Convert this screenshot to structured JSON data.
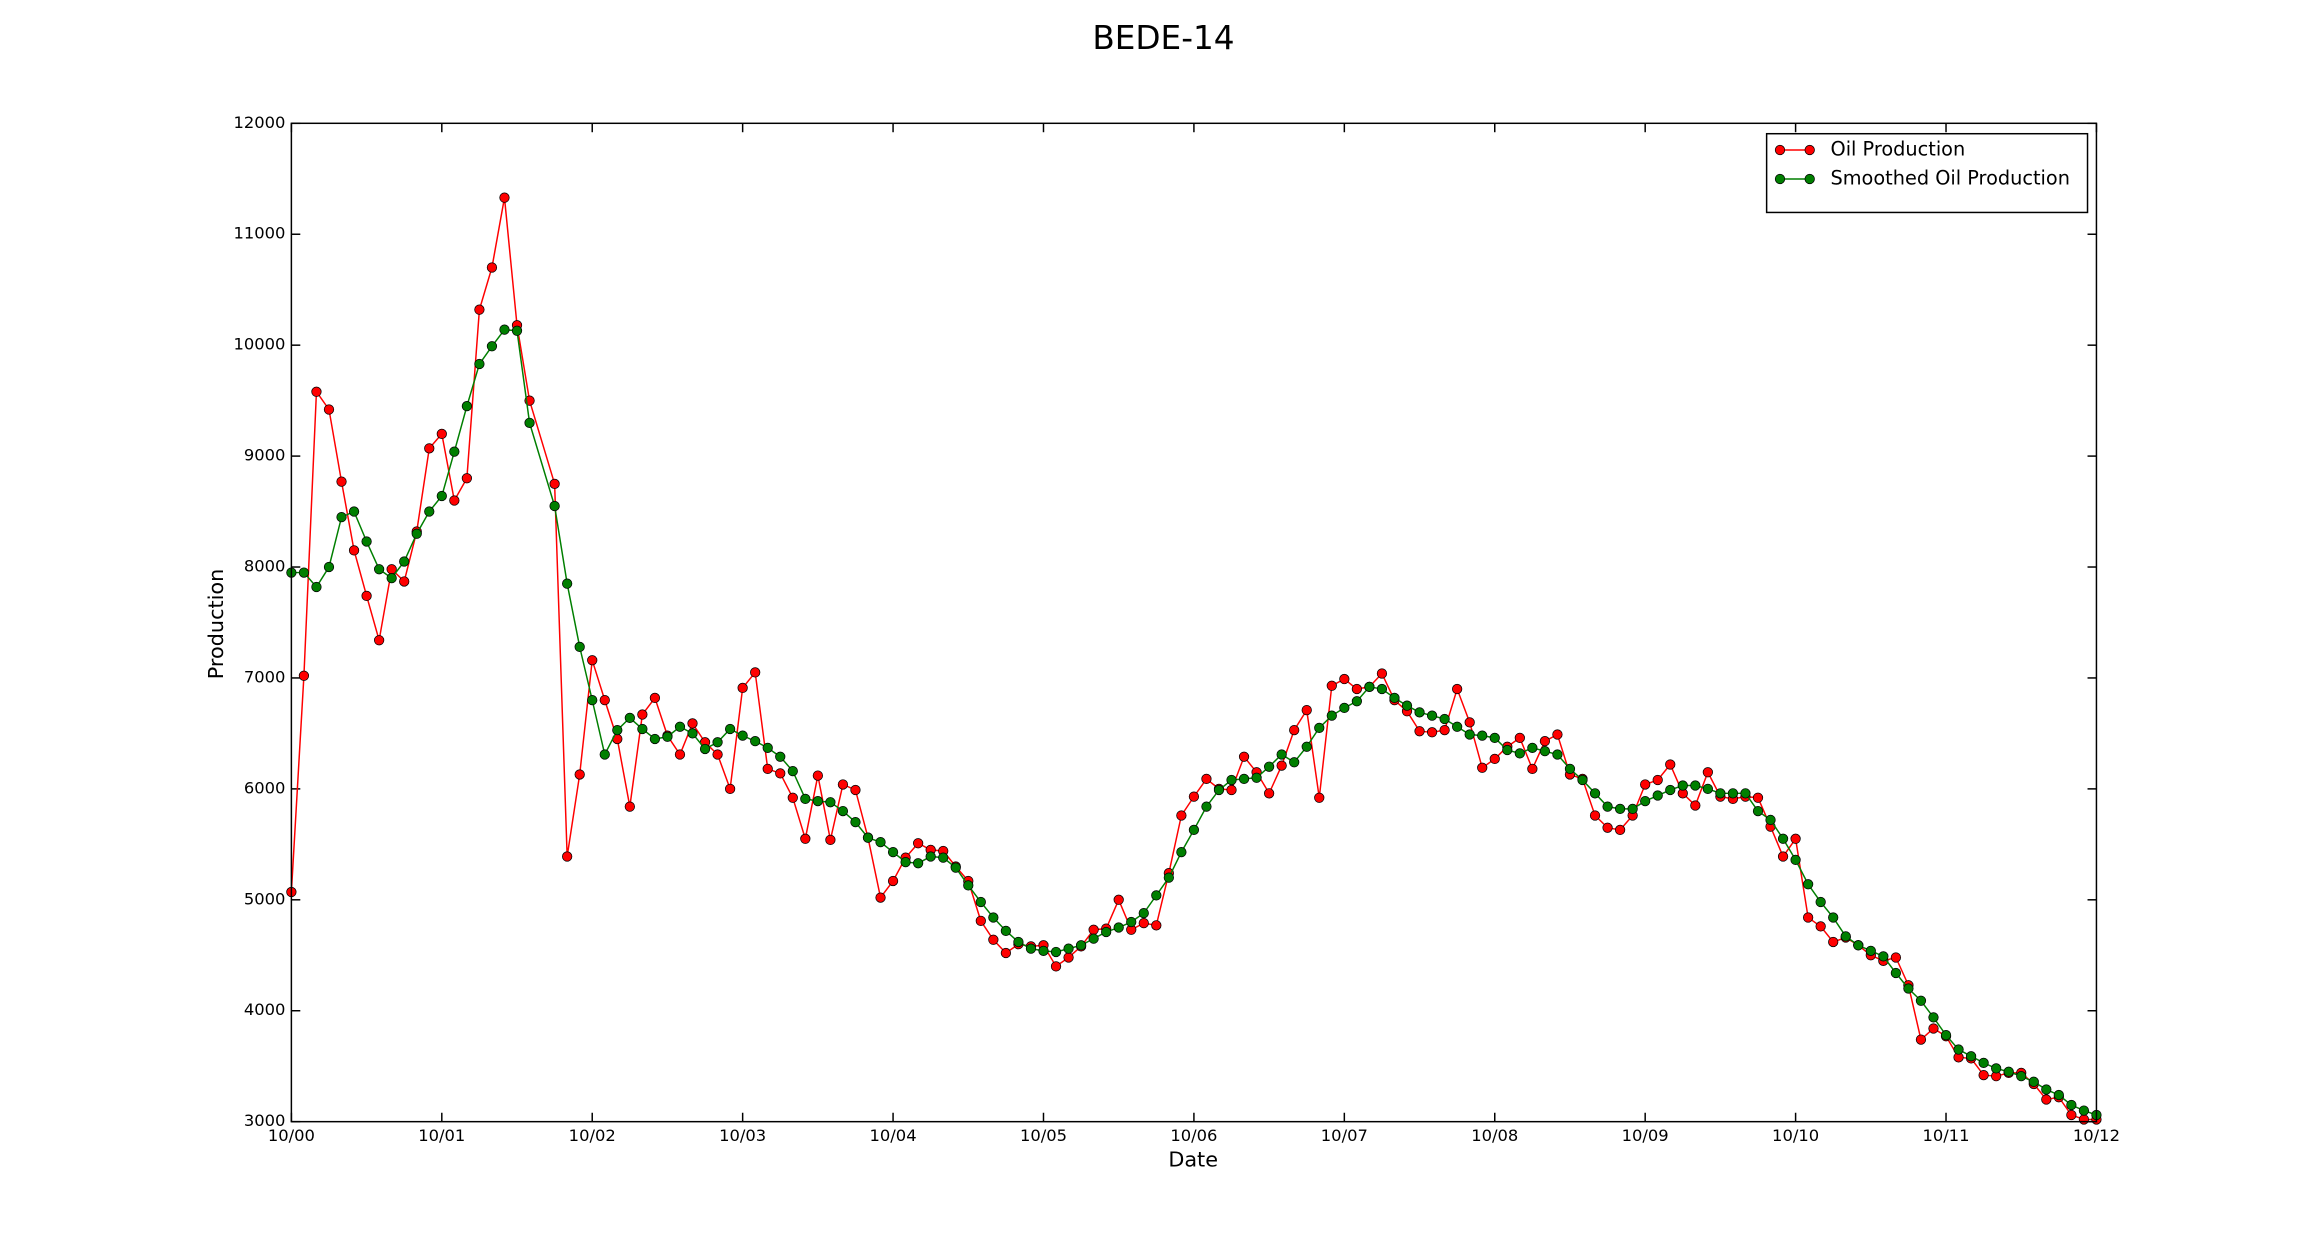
{
  "chart_data": {
    "type": "line",
    "title": "BEDE-14",
    "x_label": "Date",
    "y_label": "Production",
    "x": [
      0,
      1,
      2,
      3,
      4,
      5,
      6,
      7,
      8,
      9,
      10,
      11,
      12,
      13,
      14,
      15,
      16,
      17,
      18,
      19,
      21,
      22,
      23,
      24,
      25,
      26,
      27,
      28,
      29,
      30,
      31,
      32,
      33,
      34,
      35,
      36,
      37,
      38,
      39,
      40,
      41,
      42,
      43,
      44,
      45,
      46,
      47,
      48,
      49,
      50,
      51,
      52,
      53,
      54,
      55,
      56,
      57,
      58,
      59,
      60,
      61,
      62,
      63,
      64,
      65,
      66,
      67,
      68,
      69,
      70,
      71,
      72,
      73,
      74,
      75,
      76,
      77,
      78,
      79,
      80,
      81,
      82,
      83,
      84,
      85,
      86,
      87,
      88,
      89,
      90,
      91,
      92,
      93,
      94,
      95,
      96,
      97,
      98,
      99,
      100,
      101,
      102,
      103,
      104,
      105,
      106,
      107,
      108,
      109,
      110,
      111,
      112,
      113,
      114,
      115,
      116,
      117,
      118,
      119,
      120,
      121,
      122,
      123,
      124,
      125,
      126,
      127,
      128,
      129,
      130,
      131,
      132,
      133,
      134,
      135,
      136,
      137,
      138,
      139,
      140,
      141,
      142,
      143,
      144
    ],
    "series": [
      {
        "name": "Oil Production",
        "color": "#ff0000",
        "values": [
          5070,
          7020,
          9580,
          9420,
          8770,
          8150,
          7740,
          7340,
          7980,
          7870,
          8320,
          9070,
          9200,
          8600,
          8800,
          10320,
          10700,
          11330,
          10180,
          9500,
          8750,
          5390,
          6130,
          7160,
          6800,
          6450,
          5840,
          6670,
          6820,
          6480,
          6310,
          6590,
          6420,
          6310,
          6000,
          6910,
          7050,
          6180,
          6140,
          5920,
          5550,
          6120,
          5540,
          6040,
          5990,
          5560,
          5020,
          5170,
          5380,
          5510,
          5450,
          5440,
          5300,
          5170,
          4810,
          4640,
          4520,
          4600,
          4580,
          4590,
          4400,
          4480,
          4580,
          4730,
          4740,
          5000,
          4730,
          4790,
          4770,
          5240,
          5760,
          5930,
          6090,
          6000,
          5990,
          6290,
          6150,
          5960,
          6210,
          6530,
          6710,
          5920,
          6930,
          6990,
          6900,
          6920,
          7040,
          6800,
          6700,
          6520,
          6510,
          6530,
          6900,
          6600,
          6190,
          6270,
          6380,
          6460,
          6180,
          6430,
          6490,
          6130,
          6090,
          5760,
          5650,
          5630,
          5760,
          6040,
          6080,
          6220,
          5960,
          5850,
          6150,
          5930,
          5910,
          5930,
          5920,
          5660,
          5390,
          5550,
          4840,
          4760,
          4620,
          4660,
          4590,
          4500,
          4450,
          4480,
          4230,
          3740,
          3840,
          3770,
          3580,
          3570,
          3420,
          3410,
          3440,
          3440,
          3340,
          3200,
          3220,
          3060,
          3020,
          3020
        ]
      },
      {
        "name": "Smoothed Oil Production",
        "color": "#007f00",
        "values": [
          7950,
          7950,
          7820,
          8000,
          8450,
          8500,
          8230,
          7980,
          7900,
          8050,
          8300,
          8500,
          8640,
          9040,
          9450,
          9830,
          9990,
          10140,
          10130,
          9300,
          8550,
          7850,
          7280,
          6800,
          6310,
          6530,
          6640,
          6540,
          6450,
          6470,
          6560,
          6500,
          6360,
          6420,
          6540,
          6480,
          6430,
          6370,
          6290,
          6160,
          5910,
          5890,
          5880,
          5800,
          5700,
          5560,
          5520,
          5430,
          5340,
          5330,
          5390,
          5380,
          5290,
          5130,
          4980,
          4840,
          4720,
          4620,
          4560,
          4540,
          4530,
          4560,
          4590,
          4650,
          4710,
          4750,
          4800,
          4880,
          5040,
          5200,
          5430,
          5630,
          5840,
          5990,
          6080,
          6090,
          6100,
          6200,
          6310,
          6240,
          6380,
          6550,
          6660,
          6730,
          6790,
          6920,
          6900,
          6820,
          6750,
          6690,
          6660,
          6630,
          6560,
          6490,
          6480,
          6460,
          6350,
          6320,
          6370,
          6340,
          6310,
          6180,
          6080,
          5960,
          5840,
          5820,
          5820,
          5890,
          5940,
          5990,
          6030,
          6030,
          6000,
          5960,
          5960,
          5960,
          5800,
          5720,
          5550,
          5360,
          5140,
          4980,
          4840,
          4670,
          4590,
          4540,
          4490,
          4340,
          4200,
          4090,
          3940,
          3780,
          3650,
          3590,
          3530,
          3480,
          3450,
          3410,
          3360,
          3290,
          3240,
          3150,
          3100,
          3060
        ]
      }
    ],
    "xlim": [
      0,
      144
    ],
    "xticks": [
      {
        "value": 0,
        "label": "10/00"
      },
      {
        "value": 12,
        "label": "10/01"
      },
      {
        "value": 24,
        "label": "10/02"
      },
      {
        "value": 36,
        "label": "10/03"
      },
      {
        "value": 48,
        "label": "10/04"
      },
      {
        "value": 60,
        "label": "10/05"
      },
      {
        "value": 72,
        "label": "10/06"
      },
      {
        "value": 84,
        "label": "10/07"
      },
      {
        "value": 96,
        "label": "10/08"
      },
      {
        "value": 108,
        "label": "10/09"
      },
      {
        "value": 120,
        "label": "10/10"
      },
      {
        "value": 132,
        "label": "10/11"
      },
      {
        "value": 144,
        "label": "10/12"
      }
    ],
    "ylim": [
      3000,
      12000
    ],
    "yticks": [
      3000,
      4000,
      5000,
      6000,
      7000,
      8000,
      9000,
      10000,
      11000,
      12000
    ],
    "grid": false,
    "legend_position": "upper right"
  }
}
